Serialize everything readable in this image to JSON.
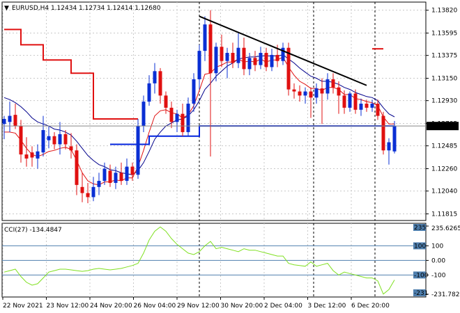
{
  "header": {
    "symbol_tf": "EURUSD,H4",
    "ohlc": "1.12434 1.12734 1.12414 1.12680",
    "text": "EURUSD,H4  1.12434 1.12734 1.12414 1.12680"
  },
  "price_axis": {
    "labels": [
      "1.13820",
      "1.13595",
      "1.13375",
      "1.13150",
      "1.12930",
      "1.12705",
      "1.12485",
      "1.12260",
      "1.12040",
      "1.11815"
    ],
    "current_price": "1.12680"
  },
  "cci_panel": {
    "title": "CCI(27) -134.4847",
    "labels": [
      "235.6265",
      "100",
      "0.00",
      "-100",
      "-231.782"
    ],
    "badge_labels": [
      "235",
      "100",
      "-100",
      "-231"
    ]
  },
  "time_axis": {
    "labels": [
      "22 Nov 2021",
      "23 Nov 12:00",
      "24 Nov 20:00",
      "26 Nov 04:00",
      "29 Nov 12:00",
      "30 Nov 20:00",
      "2 Dec 04:00",
      "3 Dec 12:00",
      "6 Dec 20:00"
    ]
  },
  "colors": {
    "bull": "#0a2fd4",
    "bear": "#e01010",
    "ma_fast": "#e01010",
    "ma_slow": "#00008b",
    "stop_line": "#e01010",
    "support": "#0022dd",
    "trendline": "#000000",
    "cci": "#7fe020",
    "cci_levels": "#4f7fae",
    "grid": "#c8c8c8",
    "vline": "#000000"
  },
  "chart_data": [
    {
      "type": "candlestick",
      "title": "EURUSD,H4",
      "ylim": [
        1.1175,
        1.139
      ],
      "candles": [
        {
          "o": 1.127,
          "h": 1.1278,
          "l": 1.1255,
          "c": 1.1275
        },
        {
          "o": 1.1272,
          "h": 1.1292,
          "l": 1.1262,
          "c": 1.1278
        },
        {
          "o": 1.1279,
          "h": 1.129,
          "l": 1.1265,
          "c": 1.1268
        },
        {
          "o": 1.1268,
          "h": 1.1274,
          "l": 1.1232,
          "c": 1.124
        },
        {
          "o": 1.124,
          "h": 1.1257,
          "l": 1.1228,
          "c": 1.1236
        },
        {
          "o": 1.1242,
          "h": 1.1248,
          "l": 1.1228,
          "c": 1.1237
        },
        {
          "o": 1.1236,
          "h": 1.125,
          "l": 1.1226,
          "c": 1.1243
        },
        {
          "o": 1.1242,
          "h": 1.1278,
          "l": 1.1238,
          "c": 1.1264
        },
        {
          "o": 1.1254,
          "h": 1.1268,
          "l": 1.1246,
          "c": 1.1258
        },
        {
          "o": 1.1258,
          "h": 1.1262,
          "l": 1.1245,
          "c": 1.125
        },
        {
          "o": 1.125,
          "h": 1.1272,
          "l": 1.124,
          "c": 1.126
        },
        {
          "o": 1.126,
          "h": 1.1264,
          "l": 1.1245,
          "c": 1.125
        },
        {
          "o": 1.1248,
          "h": 1.1261,
          "l": 1.1236,
          "c": 1.1244
        },
        {
          "o": 1.1244,
          "h": 1.125,
          "l": 1.12,
          "c": 1.121
        },
        {
          "o": 1.1208,
          "h": 1.1222,
          "l": 1.1193,
          "c": 1.1202
        },
        {
          "o": 1.1202,
          "h": 1.1212,
          "l": 1.1192,
          "c": 1.1198
        },
        {
          "o": 1.1198,
          "h": 1.1218,
          "l": 1.1194,
          "c": 1.1208
        },
        {
          "o": 1.1208,
          "h": 1.1222,
          "l": 1.12,
          "c": 1.1214
        },
        {
          "o": 1.1214,
          "h": 1.1232,
          "l": 1.121,
          "c": 1.1226
        },
        {
          "o": 1.1224,
          "h": 1.123,
          "l": 1.1208,
          "c": 1.1212
        },
        {
          "o": 1.1212,
          "h": 1.1228,
          "l": 1.1206,
          "c": 1.1222
        },
        {
          "o": 1.1222,
          "h": 1.1232,
          "l": 1.121,
          "c": 1.1214
        },
        {
          "o": 1.1214,
          "h": 1.1236,
          "l": 1.121,
          "c": 1.1228
        },
        {
          "o": 1.1228,
          "h": 1.1232,
          "l": 1.1214,
          "c": 1.122
        },
        {
          "o": 1.122,
          "h": 1.1275,
          "l": 1.1216,
          "c": 1.1268
        },
        {
          "o": 1.1268,
          "h": 1.1298,
          "l": 1.1262,
          "c": 1.1292
        },
        {
          "o": 1.1292,
          "h": 1.1318,
          "l": 1.1288,
          "c": 1.131
        },
        {
          "o": 1.131,
          "h": 1.133,
          "l": 1.13,
          "c": 1.1322
        },
        {
          "o": 1.1322,
          "h": 1.1325,
          "l": 1.129,
          "c": 1.1298
        },
        {
          "o": 1.1298,
          "h": 1.1302,
          "l": 1.128,
          "c": 1.1286
        },
        {
          "o": 1.1286,
          "h": 1.1292,
          "l": 1.1266,
          "c": 1.1272
        },
        {
          "o": 1.1272,
          "h": 1.1284,
          "l": 1.1262,
          "c": 1.128
        },
        {
          "o": 1.128,
          "h": 1.129,
          "l": 1.1258,
          "c": 1.1262
        },
        {
          "o": 1.1262,
          "h": 1.1296,
          "l": 1.1258,
          "c": 1.129
        },
        {
          "o": 1.129,
          "h": 1.132,
          "l": 1.1282,
          "c": 1.1314
        },
        {
          "o": 1.1314,
          "h": 1.1348,
          "l": 1.1304,
          "c": 1.1342
        },
        {
          "o": 1.1342,
          "h": 1.1376,
          "l": 1.1332,
          "c": 1.1368
        },
        {
          "o": 1.1368,
          "h": 1.1382,
          "l": 1.1238,
          "c": 1.132
        },
        {
          "o": 1.132,
          "h": 1.135,
          "l": 1.1312,
          "c": 1.1346
        },
        {
          "o": 1.1346,
          "h": 1.1358,
          "l": 1.1326,
          "c": 1.1332
        },
        {
          "o": 1.1332,
          "h": 1.1345,
          "l": 1.1315,
          "c": 1.134
        },
        {
          "o": 1.134,
          "h": 1.135,
          "l": 1.1325,
          "c": 1.133
        },
        {
          "o": 1.133,
          "h": 1.136,
          "l": 1.1325,
          "c": 1.1345
        },
        {
          "o": 1.1345,
          "h": 1.1355,
          "l": 1.1318,
          "c": 1.1324
        },
        {
          "o": 1.1324,
          "h": 1.134,
          "l": 1.1318,
          "c": 1.1335
        },
        {
          "o": 1.1335,
          "h": 1.1342,
          "l": 1.1322,
          "c": 1.1328
        },
        {
          "o": 1.1328,
          "h": 1.1346,
          "l": 1.1324,
          "c": 1.134
        },
        {
          "o": 1.134,
          "h": 1.1345,
          "l": 1.1322,
          "c": 1.1326
        },
        {
          "o": 1.1326,
          "h": 1.1344,
          "l": 1.1322,
          "c": 1.1338
        },
        {
          "o": 1.1338,
          "h": 1.1348,
          "l": 1.1326,
          "c": 1.1332
        },
        {
          "o": 1.1332,
          "h": 1.135,
          "l": 1.1328,
          "c": 1.1345
        },
        {
          "o": 1.1345,
          "h": 1.135,
          "l": 1.1298,
          "c": 1.1304
        },
        {
          "o": 1.1304,
          "h": 1.131,
          "l": 1.1295,
          "c": 1.1302
        },
        {
          "o": 1.1302,
          "h": 1.1308,
          "l": 1.1292,
          "c": 1.1298
        },
        {
          "o": 1.1298,
          "h": 1.1306,
          "l": 1.129,
          "c": 1.1302
        },
        {
          "o": 1.1302,
          "h": 1.1306,
          "l": 1.1276,
          "c": 1.1296
        },
        {
          "o": 1.1296,
          "h": 1.131,
          "l": 1.129,
          "c": 1.1305
        },
        {
          "o": 1.1305,
          "h": 1.1315,
          "l": 1.127,
          "c": 1.13
        },
        {
          "o": 1.13,
          "h": 1.132,
          "l": 1.1294,
          "c": 1.1314
        },
        {
          "o": 1.1314,
          "h": 1.132,
          "l": 1.13,
          "c": 1.1306
        },
        {
          "o": 1.1306,
          "h": 1.1312,
          "l": 1.128,
          "c": 1.1298
        },
        {
          "o": 1.1298,
          "h": 1.1303,
          "l": 1.128,
          "c": 1.1286
        },
        {
          "o": 1.1286,
          "h": 1.1302,
          "l": 1.1282,
          "c": 1.13
        },
        {
          "o": 1.13,
          "h": 1.1304,
          "l": 1.128,
          "c": 1.1284
        },
        {
          "o": 1.1284,
          "h": 1.1295,
          "l": 1.1278,
          "c": 1.129
        },
        {
          "o": 1.129,
          "h": 1.1294,
          "l": 1.1282,
          "c": 1.1286
        },
        {
          "o": 1.1286,
          "h": 1.1294,
          "l": 1.1282,
          "c": 1.129
        },
        {
          "o": 1.129,
          "h": 1.1294,
          "l": 1.1274,
          "c": 1.1278
        },
        {
          "o": 1.1278,
          "h": 1.1282,
          "l": 1.124,
          "c": 1.1244
        },
        {
          "o": 1.1244,
          "h": 1.1256,
          "l": 1.123,
          "c": 1.1252
        },
        {
          "o": 1.1243,
          "h": 1.1273,
          "l": 1.1241,
          "c": 1.1268
        }
      ],
      "ma_fast": [
        1.1262,
        1.1262,
        1.1261,
        1.1254,
        1.1246,
        1.124,
        1.1238,
        1.124,
        1.1243,
        1.1244,
        1.1246,
        1.1247,
        1.1245,
        1.1234,
        1.1222,
        1.1214,
        1.1211,
        1.121,
        1.1213,
        1.1213,
        1.1215,
        1.1214,
        1.1217,
        1.1217,
        1.1228,
        1.1244,
        1.1262,
        1.1278,
        1.1283,
        1.1284,
        1.1281,
        1.128,
        1.1276,
        1.1279,
        1.1288,
        1.1303,
        1.1319,
        1.132,
        1.1326,
        1.1328,
        1.1331,
        1.1331,
        1.1334,
        1.1331,
        1.1332,
        1.1331,
        1.1334,
        1.1331,
        1.1333,
        1.1333,
        1.1336,
        1.1326,
        1.1318,
        1.1312,
        1.1309,
        1.1305,
        1.1305,
        1.1303,
        1.1306,
        1.1306,
        1.1304,
        1.1299,
        1.1299,
        1.1295,
        1.1294,
        1.1292,
        1.1291,
        1.1288,
        1.1277,
        1.127,
        1.127
      ],
      "ma_slow": [
        1.1296,
        1.1294,
        1.1291,
        1.1287,
        1.1282,
        1.1276,
        1.1272,
        1.127,
        1.1268,
        1.1265,
        1.1264,
        1.1262,
        1.1259,
        1.1253,
        1.1246,
        1.1239,
        1.1234,
        1.123,
        1.1228,
        1.1225,
        1.1224,
        1.1222,
        1.1221,
        1.122,
        1.1224,
        1.1232,
        1.1243,
        1.1255,
        1.1262,
        1.1268,
        1.1271,
        1.1274,
        1.1275,
        1.1278,
        1.1284,
        1.1293,
        1.1304,
        1.131,
        1.1317,
        1.1322,
        1.1327,
        1.133,
        1.1334,
        1.1335,
        1.1336,
        1.1336,
        1.1337,
        1.1337,
        1.1337,
        1.1337,
        1.1338,
        1.1334,
        1.133,
        1.1325,
        1.1321,
        1.1317,
        1.1315,
        1.1312,
        1.1312,
        1.1311,
        1.1309,
        1.1306,
        1.1304,
        1.1301,
        1.1299,
        1.1297,
        1.1296,
        1.1293,
        1.1286,
        1.128,
        1.1277
      ],
      "stop_line": [
        {
          "from": 0,
          "to": 3,
          "y": 1.1363
        },
        {
          "from": 3,
          "to": 7,
          "y": 1.1348
        },
        {
          "from": 7,
          "to": 12,
          "y": 1.1333
        },
        {
          "from": 12,
          "to": 16,
          "y": 1.132
        },
        {
          "from": 16,
          "to": 24,
          "y": 1.1275
        }
      ],
      "stop_marker": {
        "from": 66,
        "to": 68,
        "y": 1.1344
      },
      "support_steps": [
        {
          "from": 19,
          "to": 26,
          "y": 1.125
        },
        {
          "from": 26,
          "to": 35,
          "y": 1.1258
        },
        {
          "from": 35,
          "to": 70,
          "y": 1.1268
        }
      ],
      "trendline": {
        "x1": 35,
        "y1": 1.1376,
        "x2": 65,
        "y2": 1.1308
      },
      "current_price": 1.1268,
      "vlines": [
        35.0,
        55.5,
        66.5
      ]
    },
    {
      "type": "line",
      "title": "CCI(27) -134.4847",
      "ylim": [
        -231.782,
        235.6265
      ],
      "levels": [
        100,
        0,
        -100
      ],
      "values": [
        -80,
        -70,
        -60,
        -110,
        -150,
        -170,
        -160,
        -120,
        -80,
        -70,
        -60,
        -60,
        -65,
        -70,
        -75,
        -70,
        -60,
        -55,
        -60,
        -65,
        -60,
        -55,
        -45,
        -35,
        -20,
        50,
        140,
        200,
        230,
        200,
        150,
        110,
        80,
        50,
        40,
        60,
        100,
        130,
        80,
        90,
        80,
        70,
        60,
        80,
        70,
        70,
        60,
        50,
        40,
        30,
        30,
        -20,
        -30,
        -35,
        -40,
        -10,
        -40,
        -30,
        -20,
        -70,
        -100,
        -80,
        -90,
        -100,
        -110,
        -120,
        -120,
        -140,
        -231,
        -200,
        -134
      ]
    }
  ]
}
